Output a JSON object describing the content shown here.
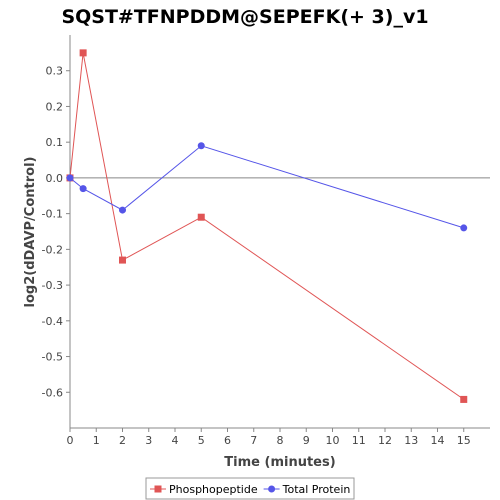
{
  "chart_data": {
    "type": "line",
    "title": "SQST#TFNPDDM@SEPEFK(+ 3)_v1",
    "xlabel": "Time (minutes)",
    "ylabel": "log2(dDAVP/Control)",
    "xlim": [
      0,
      16
    ],
    "ylim": [
      -0.7,
      0.4
    ],
    "xticks": [
      0,
      1,
      2,
      3,
      4,
      5,
      6,
      7,
      8,
      9,
      10,
      11,
      12,
      13,
      14,
      15
    ],
    "yticks": [
      0.3,
      0.2,
      0.1,
      0.0,
      -0.1,
      -0.2,
      -0.3,
      -0.4,
      -0.5,
      -0.6
    ],
    "ytick_labels": [
      "0.3",
      "0.2",
      "0.1",
      "0.0",
      "-0.1",
      "-0.2",
      "-0.3",
      "-0.4",
      "-0.5",
      "-0.6"
    ],
    "grid": false,
    "reference_line_y": 0,
    "legend_position": "bottom",
    "series": [
      {
        "name": "Phosphopeptide",
        "color": "#e05555",
        "marker": "square",
        "x": [
          0,
          0.5,
          2,
          5,
          15
        ],
        "y": [
          0.0,
          0.35,
          -0.23,
          -0.11,
          -0.62
        ]
      },
      {
        "name": "Total Protein",
        "color": "#5555e8",
        "marker": "circle",
        "x": [
          0,
          0.5,
          2,
          5,
          15
        ],
        "y": [
          0.0,
          -0.03,
          -0.09,
          0.09,
          -0.14
        ]
      }
    ]
  }
}
